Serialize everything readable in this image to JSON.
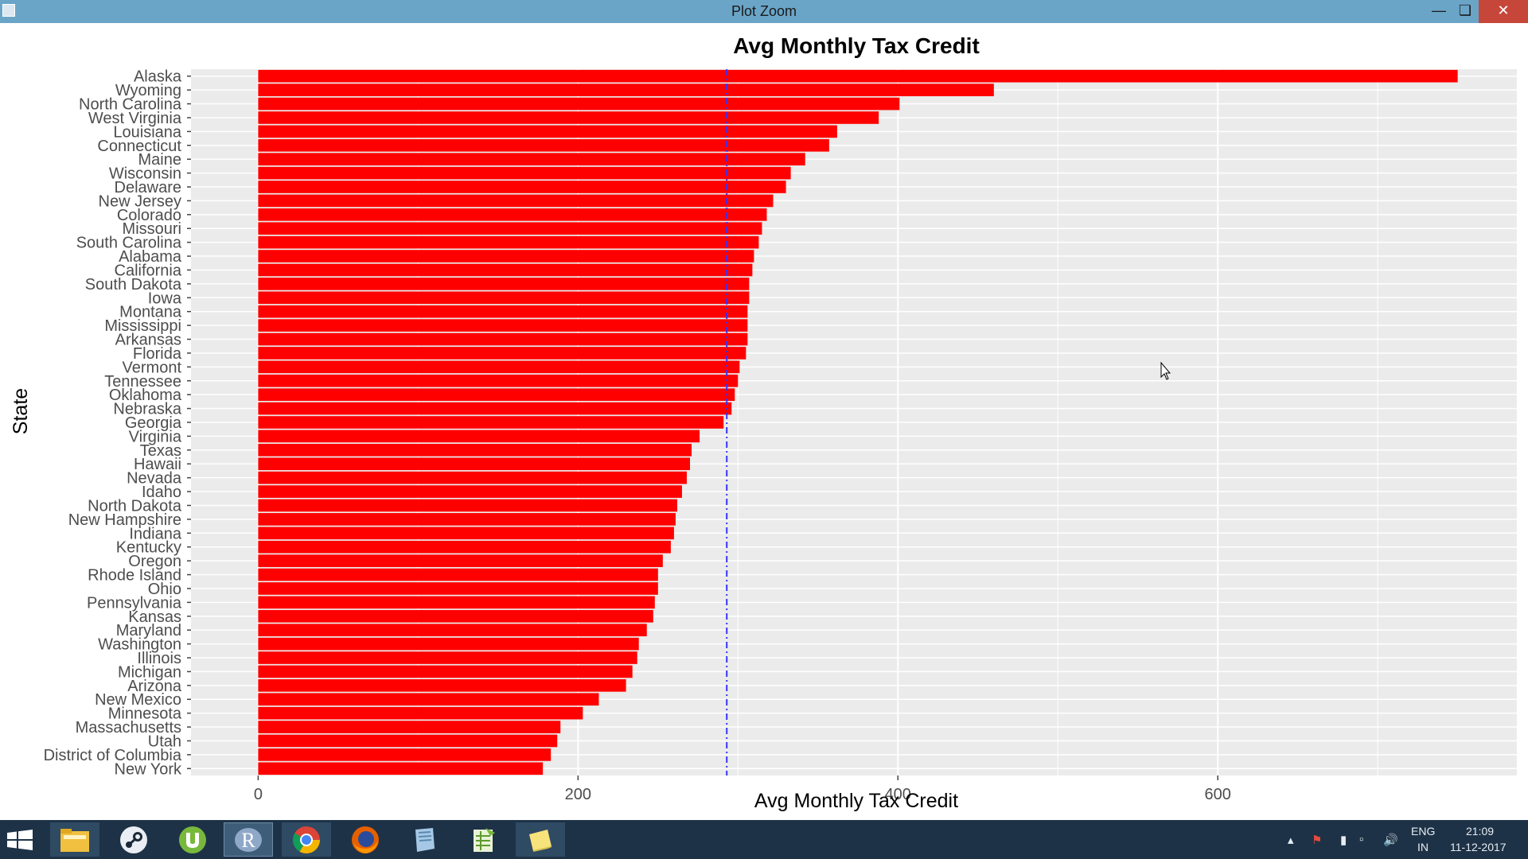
{
  "window": {
    "title": "Plot Zoom"
  },
  "chart_data": {
    "type": "bar",
    "orientation": "horizontal",
    "title": "Avg Monthly Tax Credit",
    "xlabel": "Avg Monthly Tax Credit",
    "ylabel": "State",
    "xlim": [
      -42,
      787
    ],
    "xticks": [
      0,
      200,
      400,
      600
    ],
    "xtick_labels": [
      "0",
      "200",
      "400",
      "600"
    ],
    "grid": true,
    "bar_color": "#ff0000",
    "panel_background": "#ebebeb",
    "reference_line": {
      "value": 293,
      "style": "dashdot",
      "color": "#3333ff"
    },
    "categories": [
      "Alaska",
      "Wyoming",
      "North Carolina",
      "West Virginia",
      "Louisiana",
      "Connecticut",
      "Maine",
      "Wisconsin",
      "Delaware",
      "New Jersey",
      "Colorado",
      "Missouri",
      "South Carolina",
      "Alabama",
      "California",
      "South Dakota",
      "Iowa",
      "Montana",
      "Mississippi",
      "Arkansas",
      "Florida",
      "Vermont",
      "Tennessee",
      "Oklahoma",
      "Nebraska",
      "Georgia",
      "Virginia",
      "Texas",
      "Hawaii",
      "Nevada",
      "Idaho",
      "North Dakota",
      "New Hampshire",
      "Indiana",
      "Kentucky",
      "Oregon",
      "Rhode Island",
      "Ohio",
      "Pennsylvania",
      "Kansas",
      "Maryland",
      "Washington",
      "Illinois",
      "Michigan",
      "Arizona",
      "New Mexico",
      "Minnesota",
      "Massachusetts",
      "Utah",
      "District of Columbia",
      "New York"
    ],
    "values": [
      750,
      460,
      401,
      388,
      362,
      357,
      342,
      333,
      330,
      322,
      318,
      315,
      313,
      310,
      309,
      307,
      307,
      306,
      306,
      306,
      305,
      301,
      300,
      298,
      296,
      291,
      276,
      271,
      270,
      268,
      265,
      262,
      261,
      260,
      258,
      253,
      250,
      250,
      248,
      247,
      243,
      238,
      237,
      234,
      230,
      213,
      203,
      189,
      187,
      183,
      178
    ]
  },
  "taskbar": {
    "apps": [
      {
        "name": "file-explorer-icon"
      },
      {
        "name": "steam-icon"
      },
      {
        "name": "utorrent-icon"
      },
      {
        "name": "r-icon",
        "label": "R"
      },
      {
        "name": "chrome-icon"
      },
      {
        "name": "firefox-icon"
      },
      {
        "name": "notepad-icon"
      },
      {
        "name": "spreadsheet-icon"
      },
      {
        "name": "sticky-notes-icon"
      }
    ],
    "tray": {
      "language_top": "ENG",
      "language_bottom": "IN",
      "time": "21:09",
      "date": "11-12-2017"
    }
  }
}
